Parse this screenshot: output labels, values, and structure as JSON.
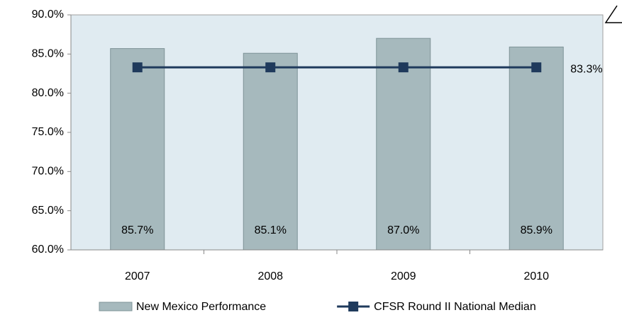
{
  "chart_data": {
    "type": "bar",
    "categories": [
      "2007",
      "2008",
      "2009",
      "2010"
    ],
    "series": [
      {
        "name": "New Mexico Performance",
        "type": "bar",
        "color": "#a6b9bd",
        "values": [
          85.7,
          85.1,
          87.0,
          85.9
        ],
        "value_labels": [
          "85.7%",
          "85.1%",
          "87.0%",
          "85.9%"
        ]
      },
      {
        "name": "CFSR Round II National Median",
        "type": "line",
        "color": "#1f3a5c",
        "values": [
          83.3,
          83.3,
          83.3,
          83.3
        ],
        "value_labels": [
          null,
          null,
          null,
          "83.3%"
        ]
      }
    ],
    "ylim": [
      60,
      90
    ],
    "yticks": [
      {
        "value": 60,
        "label": "60.0%"
      },
      {
        "value": 65,
        "label": "65.0%"
      },
      {
        "value": 70,
        "label": "70.0%"
      },
      {
        "value": 75,
        "label": "75.0%"
      },
      {
        "value": 80,
        "label": "80.0%"
      },
      {
        "value": 85,
        "label": "85.0%"
      },
      {
        "value": 90,
        "label": "90.0%"
      }
    ],
    "grid": false,
    "legend": "bottom"
  }
}
